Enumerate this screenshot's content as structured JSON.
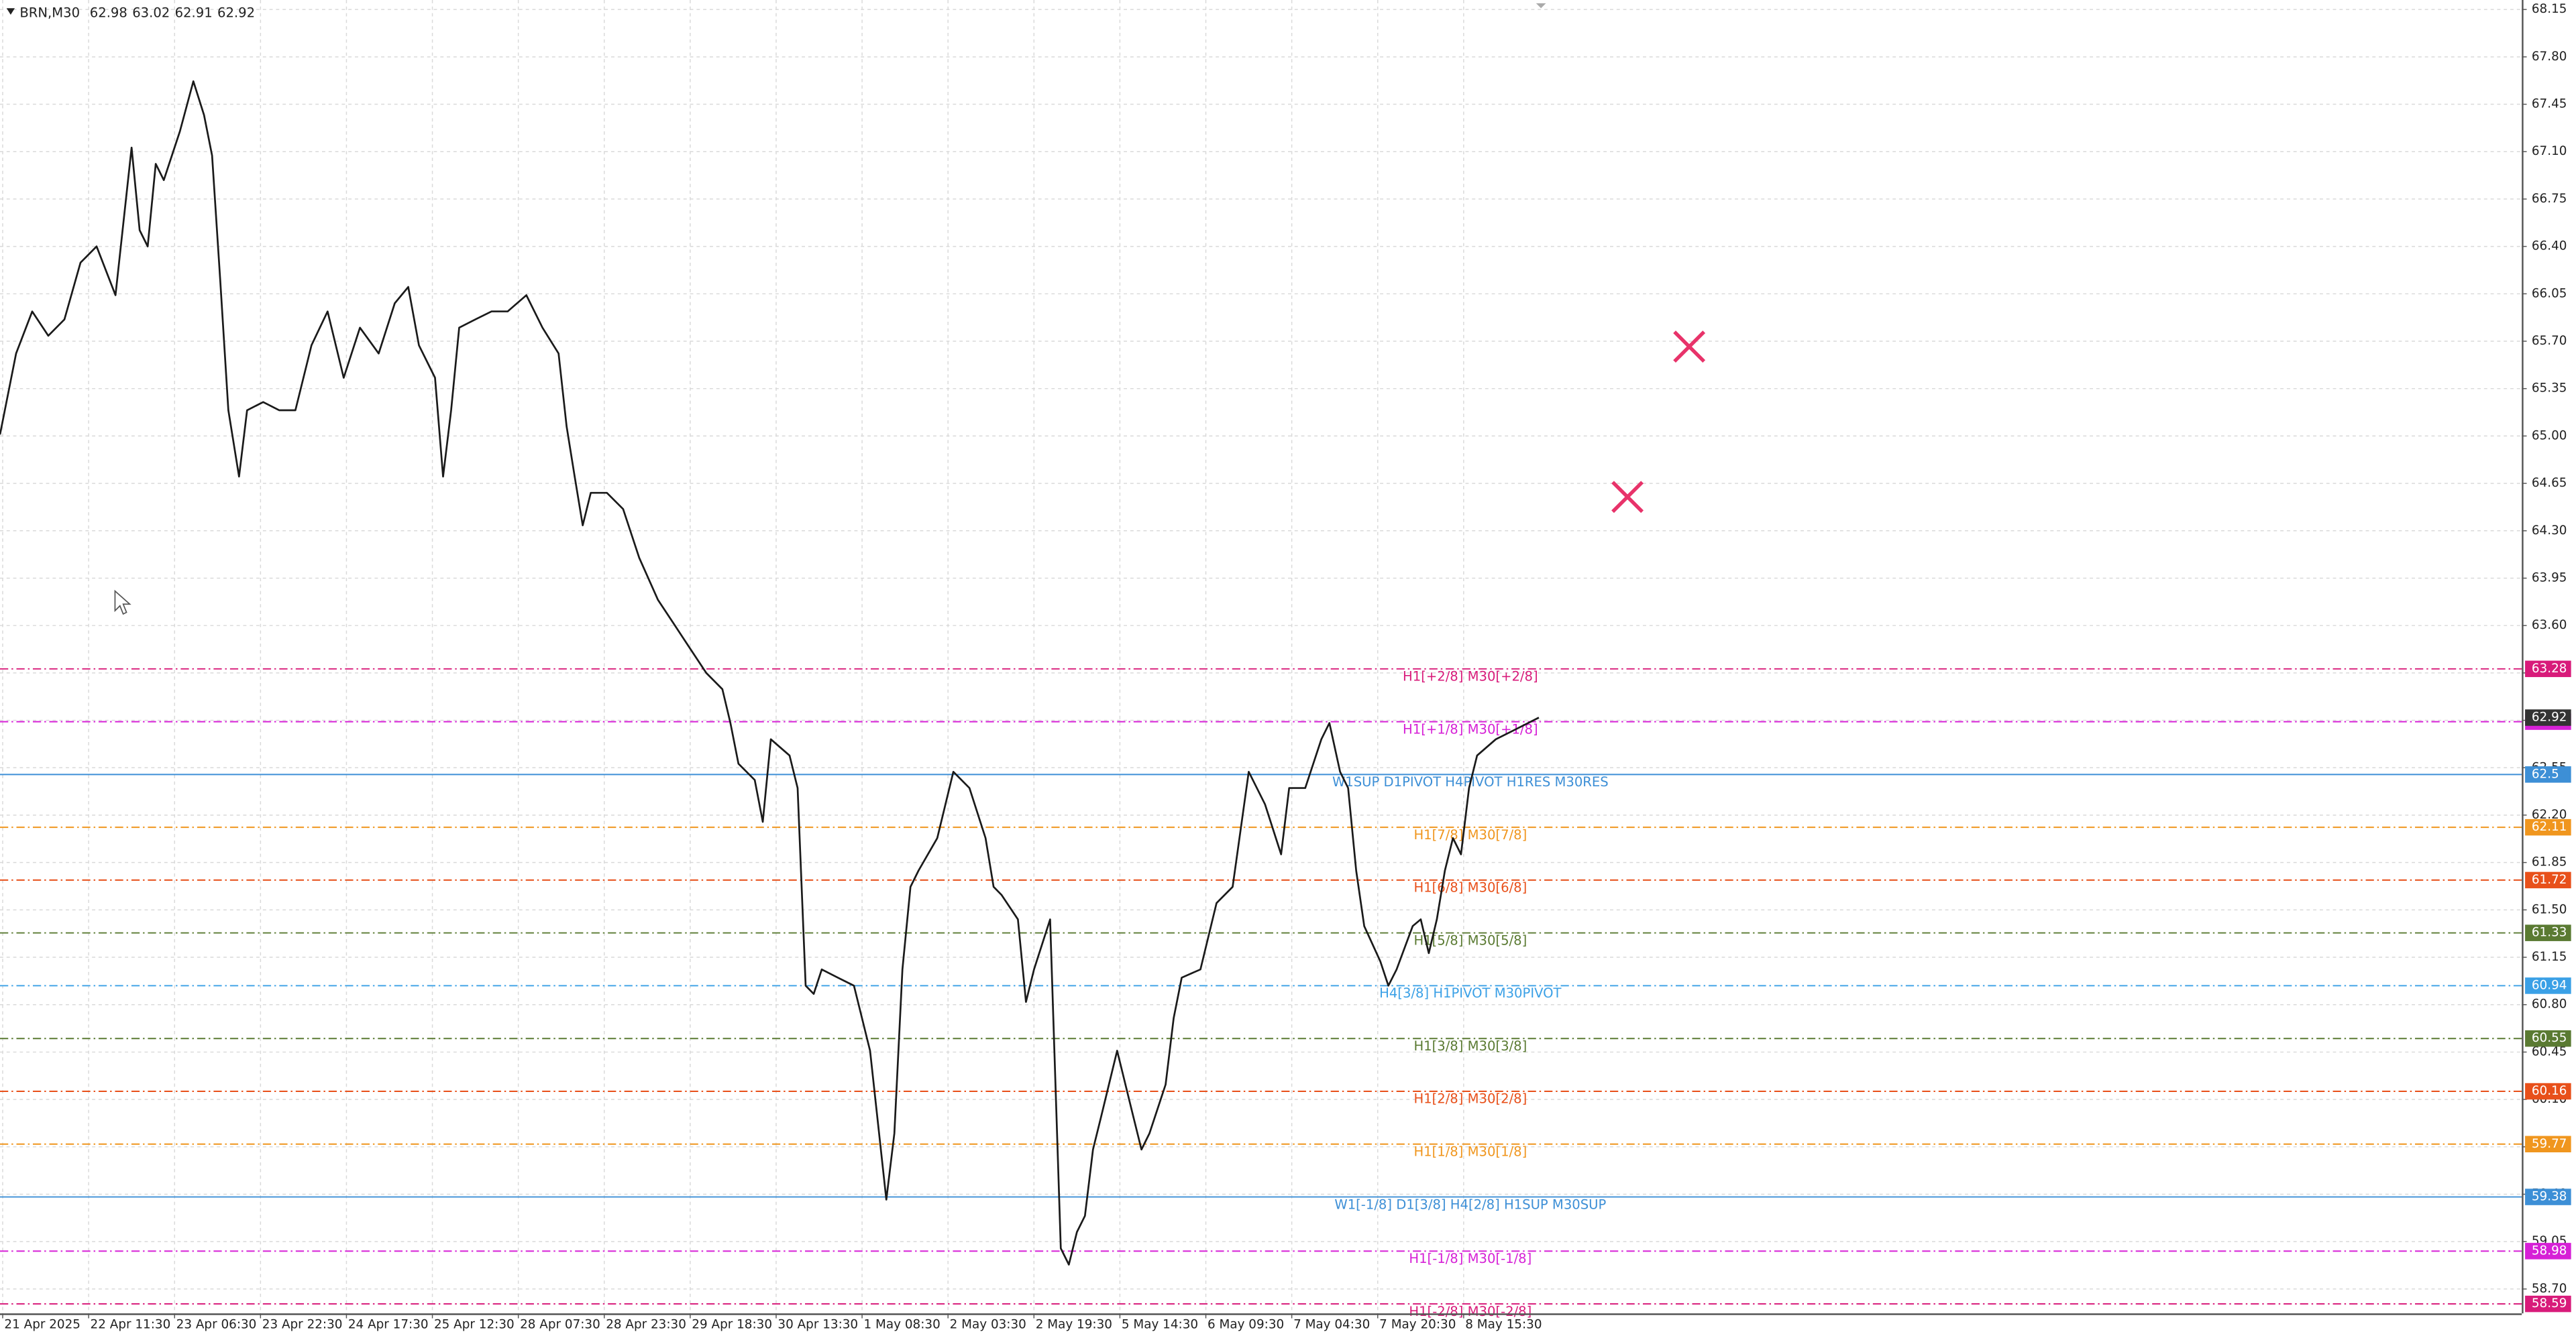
{
  "chart_data": {
    "type": "line",
    "symbol": "BRN,M30",
    "ohlc": [
      62.98,
      63.02,
      62.91,
      62.92
    ],
    "color": "#1a1a1a",
    "grid": true,
    "x": [
      -1,
      5,
      11,
      17,
      23,
      29,
      35,
      42,
      48,
      51,
      54,
      57,
      60,
      66,
      71,
      75,
      78,
      81,
      84,
      88,
      91,
      97,
      103,
      109,
      115,
      121,
      127,
      133,
      140,
      146,
      151,
      155,
      161,
      164,
      167,
      170,
      176,
      182,
      188,
      195,
      201,
      207,
      210,
      213,
      216,
      219,
      225,
      231,
      237,
      244,
      250,
      256,
      262,
      268,
      271,
      274,
      280,
      283,
      286,
      293,
      296,
      299,
      302,
      305,
      311,
      317,
      323,
      329,
      332,
      335,
      338,
      341,
      348,
      354,
      360,
      366,
      369,
      372,
      378,
      381,
      384,
      390,
      394,
      397,
      400,
      403,
      406,
      409,
      415,
      421,
      424,
      427,
      433,
      436,
      439,
      446,
      452,
      458,
      464,
      470,
      476,
      479,
      485,
      491,
      494,
      498,
      501,
      504,
      507,
      513,
      516,
      519,
      525,
      528,
      531,
      534,
      537,
      540,
      543,
      546,
      549,
      556,
      562,
      568,
      572
    ],
    "values": [
      65.01,
      65.61,
      65.92,
      65.74,
      65.86,
      66.28,
      66.4,
      66.04,
      67.13,
      66.52,
      66.4,
      67.01,
      66.89,
      67.25,
      67.62,
      67.37,
      67.07,
      66.16,
      65.19,
      64.7,
      65.19,
      65.25,
      65.19,
      65.19,
      65.67,
      65.92,
      65.43,
      65.8,
      65.61,
      65.98,
      66.1,
      65.67,
      65.43,
      64.7,
      65.19,
      65.8,
      65.86,
      65.92,
      65.92,
      66.04,
      65.8,
      65.61,
      65.07,
      64.7,
      64.34,
      64.58,
      64.58,
      64.46,
      64.1,
      63.79,
      63.61,
      63.43,
      63.25,
      63.13,
      62.88,
      62.58,
      62.46,
      62.15,
      62.76,
      62.64,
      62.4,
      60.94,
      60.88,
      61.06,
      61.0,
      60.94,
      60.46,
      59.36,
      59.85,
      61.06,
      61.67,
      61.79,
      62.03,
      62.52,
      62.4,
      62.03,
      61.67,
      61.61,
      61.43,
      60.82,
      61.06,
      61.43,
      59.0,
      58.88,
      59.12,
      59.24,
      59.73,
      59.97,
      60.46,
      59.97,
      59.73,
      59.85,
      60.21,
      60.7,
      61.0,
      61.06,
      61.55,
      61.67,
      62.52,
      62.28,
      61.91,
      62.4,
      62.4,
      62.76,
      62.88,
      62.52,
      62.4,
      61.79,
      61.38,
      61.12,
      60.94,
      61.06,
      61.38,
      61.43,
      61.18,
      61.43,
      61.79,
      62.03,
      61.91,
      62.4,
      62.64,
      62.76,
      62.82,
      62.88,
      62.92
    ],
    "xlim": [
      -1,
      938
    ],
    "ylim": [
      58.52,
      68.22
    ],
    "xticks": [
      {
        "value": 0,
        "label": "21 Apr 2025"
      },
      {
        "value": 32,
        "label": "22 Apr 11:30"
      },
      {
        "value": 64,
        "label": "23 Apr 06:30"
      },
      {
        "value": 96,
        "label": "23 Apr 22:30"
      },
      {
        "value": 128,
        "label": "24 Apr 17:30"
      },
      {
        "value": 160,
        "label": "25 Apr 12:30"
      },
      {
        "value": 192,
        "label": "28 Apr 07:30"
      },
      {
        "value": 224,
        "label": "28 Apr 23:30"
      },
      {
        "value": 256,
        "label": "29 Apr 18:30"
      },
      {
        "value": 288,
        "label": "30 Apr 13:30"
      },
      {
        "value": 320,
        "label": "1 May 08:30"
      },
      {
        "value": 352,
        "label": "2 May 03:30"
      },
      {
        "value": 384,
        "label": "2 May 19:30"
      },
      {
        "value": 416,
        "label": "5 May 14:30"
      },
      {
        "value": 448,
        "label": "6 May 09:30"
      },
      {
        "value": 480,
        "label": "7 May 04:30"
      },
      {
        "value": 512,
        "label": "7 May 20:30"
      },
      {
        "value": 544,
        "label": "8 May 15:30"
      }
    ],
    "yticks": [
      68.15,
      {
        "value": 67.8,
        "label": "67.80"
      },
      67.45,
      {
        "value": 67.1,
        "label": "67.10"
      },
      66.75,
      {
        "value": 66.4,
        "label": "66.40"
      },
      66.05,
      {
        "value": 65.7,
        "label": "65.70"
      },
      65.35,
      {
        "value": 65,
        "label": "65.00"
      },
      64.65,
      {
        "value": 64.3,
        "label": "64.30"
      },
      63.95,
      {
        "value": 63.6,
        "label": "63.60"
      },
      63.25,
      {
        "value": 62.9,
        "label": "62.90"
      },
      62.55,
      {
        "value": 62.2,
        "label": "62.20"
      },
      61.85,
      {
        "value": 61.5,
        "label": "61.50"
      },
      61.15,
      {
        "value": 60.8,
        "label": "60.80"
      },
      60.45,
      {
        "value": 60.1,
        "label": "60.10"
      },
      59.75,
      {
        "value": 59.4,
        "label": "59.40"
      },
      59.05,
      {
        "value": 58.7,
        "label": "58.70"
      }
    ],
    "levels": [
      {
        "value": 63.28,
        "label": "H1[+2/8] M30[+2/8]",
        "color": "#d81b7a",
        "dashed": true
      },
      {
        "value": 62.89,
        "label": "H1[+1/8] M30[+1/8]",
        "color": "#d620d6",
        "dashed": true
      },
      {
        "value": 62.5,
        "label": "W1SUP D1PIVOT H4PIVOT H1RES M30RES",
        "color": "#3d8fd6",
        "dashed": false
      },
      {
        "value": 62.11,
        "label": "H1[7/8] M30[7/8]",
        "color": "#f0961e",
        "dashed": true
      },
      {
        "value": 61.72,
        "label": "H1[6/8] M30[6/8]",
        "color": "#e8501a",
        "dashed": true
      },
      {
        "value": 61.33,
        "label": "H1[5/8] M30[5/8]",
        "color": "#5a7a32",
        "dashed": true
      },
      {
        "value": 60.94,
        "label": "H4[3/8] H1PIVOT M30PIVOT",
        "color": "#3aa0e6",
        "dashed": true
      },
      {
        "value": 60.55,
        "label": "H1[3/8] M30[3/8]",
        "color": "#5a7a32",
        "dashed": true
      },
      {
        "value": 60.16,
        "label": "H1[2/8] M30[2/8]",
        "color": "#e8501a",
        "dashed": true
      },
      {
        "value": 59.77,
        "label": "H1[1/8] M30[1/8]",
        "color": "#f0961e",
        "dashed": true
      },
      {
        "value": 59.38,
        "label": "W1[-1/8] D1[3/8] H4[2/8] H1SUP M30SUP",
        "color": "#3d8fd6",
        "dashed": false
      },
      {
        "value": 58.98,
        "label": "H1[-1/8] M30[-1/8]",
        "color": "#d620d6",
        "dashed": true
      },
      {
        "value": 58.59,
        "label": "H1[-2/8] M30[-2/8]",
        "color": "#d81b7a",
        "dashed": true
      }
    ],
    "markers": {
      "x": [
        605,
        628
      ],
      "y": [
        64.55,
        65.66
      ],
      "color": "#e8336a"
    }
  }
}
